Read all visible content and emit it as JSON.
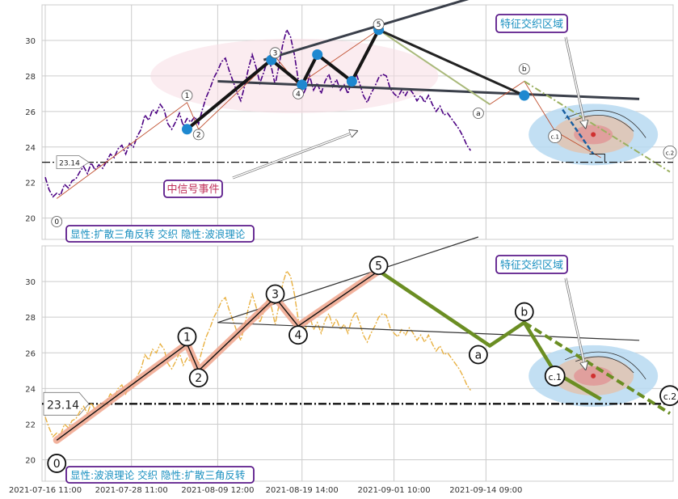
{
  "chart_data": [
    {
      "type": "line",
      "panel": "top",
      "ylim": [
        18.8,
        32
      ],
      "yticks": [
        20,
        22,
        24,
        26,
        28,
        30
      ],
      "xticks": [
        "2021-07-16 11:00",
        "2021-07-28 11:00",
        "2021-08-09 12:00",
        "2021-08-19 14:00",
        "2021-09-01 10:00",
        "2021-09-14 09:00"
      ],
      "reference_level": {
        "value": 23.14,
        "label": "23.14"
      },
      "caption": "显性:扩散三角反转 交织 隐性:波浪理论",
      "annotations": [
        {
          "text": "特征交织区域"
        },
        {
          "text": "中信号事件"
        }
      ],
      "series": [
        {
          "role": "price",
          "color": "#4b0082",
          "values": [
            22.3,
            21.6,
            21.2,
            21.4,
            21.3,
            21.9,
            21.7,
            22.1,
            22.2,
            22.6,
            22.9,
            22.5,
            23.1,
            22.7,
            23.0,
            22.8,
            23.2,
            23.6,
            23.4,
            23.9,
            24.1,
            23.6,
            24.2,
            24.0,
            24.6,
            25.0,
            25.8,
            25.5,
            26.1,
            25.9,
            26.4,
            26.1,
            25.3,
            25.0,
            25.4,
            25.9,
            25.2,
            25.6,
            25.4,
            25.7,
            25.3,
            26.1,
            26.8,
            27.3,
            27.9,
            28.3,
            28.8,
            29.0,
            28.3,
            27.7,
            27.1,
            26.6,
            27.4,
            28.4,
            29.2,
            28.5,
            27.6,
            28.2,
            28.9,
            28.5,
            27.5,
            28.6,
            29.8,
            30.6,
            30.2,
            29.2,
            27.8,
            26.8,
            27.3,
            28.0,
            27.2,
            27.6,
            27.0,
            27.7,
            28.1,
            27.4,
            27.8,
            27.2,
            27.5,
            27.0,
            27.8,
            28.2,
            27.6,
            26.9,
            26.5,
            27.0,
            27.4,
            27.9,
            28.1,
            28.0,
            27.3,
            27.0,
            26.8,
            27.2,
            26.9,
            27.3,
            27.0,
            26.6,
            26.9,
            26.5,
            26.9,
            26.4,
            26.0,
            26.3,
            25.8,
            25.9,
            25.6,
            25.3,
            25.0,
            24.6,
            24.1,
            23.8
          ]
        }
      ],
      "overlays": {
        "pattern_pivots": [
          [
            37,
            25.0
          ],
          [
            59,
            28.9
          ],
          [
            67,
            27.5
          ],
          [
            71,
            29.2
          ],
          [
            80,
            27.7
          ],
          [
            87,
            30.6
          ],
          [
            125,
            26.9
          ]
        ],
        "pattern_line_upper": [
          [
            57,
            28.9
          ],
          [
            113,
            32.5
          ]
        ],
        "pattern_line_lower": [
          [
            45,
            27.7
          ],
          [
            155,
            26.7
          ]
        ],
        "wave_path": [
          [
            3,
            21.1
          ],
          [
            37,
            26.5
          ],
          [
            40,
            25.0
          ],
          [
            60,
            29.1
          ],
          [
            66,
            27.5
          ],
          [
            87,
            30.6
          ],
          [
            116,
            26.4
          ],
          [
            125,
            27.7
          ],
          [
            133,
            24.9
          ],
          [
            145,
            23.4
          ]
        ],
        "wave_forecast": [
          [
            125,
            27.7
          ],
          [
            163,
            22.6
          ]
        ],
        "wave_labels": [
          {
            "text": "0",
            "x": 3,
            "y": 19.8
          },
          {
            "text": "1",
            "x": 37,
            "y": 26.9
          },
          {
            "text": "2",
            "x": 40,
            "y": 24.7
          },
          {
            "text": "3",
            "x": 60,
            "y": 29.3
          },
          {
            "text": "4",
            "x": 66,
            "y": 27.0
          },
          {
            "text": "5",
            "x": 87,
            "y": 30.9
          },
          {
            "text": "a",
            "x": 113,
            "y": 25.9
          },
          {
            "text": "b",
            "x": 125,
            "y": 28.4
          },
          {
            "text": "c.1",
            "x": 133,
            "y": 24.6
          },
          {
            "text": "c.2",
            "x": 163,
            "y": 23.7
          }
        ],
        "hot_zone": {
          "x": 143,
          "y": 24.7
        },
        "guide_line": [
          [
            135,
            26.1
          ],
          [
            143,
            23.6
          ]
        ]
      }
    },
    {
      "type": "line",
      "panel": "bottom",
      "ylim": [
        18.8,
        32
      ],
      "yticks": [
        20,
        22,
        24,
        26,
        28,
        30
      ],
      "xticks": [
        "2021-07-16 11:00",
        "2021-07-28 11:00",
        "2021-08-09 12:00",
        "2021-08-19 14:00",
        "2021-09-01 10:00",
        "2021-09-14 09:00"
      ],
      "reference_level": {
        "value": 23.14,
        "label": "23.14"
      },
      "caption": "显性:波浪理论 交织 隐性:扩散三角反转",
      "annotations": [
        {
          "text": "特征交织区域"
        }
      ],
      "series": [
        {
          "role": "price",
          "color": "#e8b040",
          "values": [
            22.4,
            21.8,
            21.3,
            21.5,
            21.4,
            22.0,
            21.8,
            22.2,
            22.3,
            22.7,
            23.0,
            22.6,
            23.2,
            22.8,
            23.1,
            22.9,
            23.3,
            23.7,
            23.5,
            24.0,
            24.2,
            23.7,
            24.3,
            24.1,
            24.7,
            25.1,
            25.9,
            25.6,
            26.2,
            26.0,
            26.5,
            26.2,
            25.4,
            25.1,
            25.5,
            26.0,
            25.3,
            25.7,
            25.5,
            25.8,
            25.4,
            26.2,
            26.9,
            27.4,
            28.0,
            28.4,
            28.9,
            29.1,
            28.4,
            27.8,
            27.2,
            26.7,
            27.5,
            28.5,
            29.3,
            28.6,
            27.7,
            28.3,
            29.0,
            28.6,
            27.6,
            28.7,
            29.9,
            30.6,
            30.3,
            29.3,
            27.9,
            26.9,
            27.4,
            28.1,
            27.3,
            27.7,
            27.1,
            27.8,
            28.2,
            27.5,
            27.9,
            27.3,
            27.6,
            27.1,
            27.9,
            28.3,
            27.7,
            27.0,
            26.6,
            27.1,
            27.5,
            28.0,
            28.2,
            28.1,
            27.4,
            27.1,
            26.9,
            27.3,
            27.0,
            27.4,
            27.1,
            26.7,
            27.0,
            26.6,
            27.0,
            26.5,
            26.1,
            26.4,
            25.9,
            26.0,
            25.7,
            25.4,
            25.1,
            24.7,
            24.2,
            23.9
          ]
        }
      ],
      "overlays": {
        "pattern_line_upper": [
          [
            45,
            27.7
          ],
          [
            113,
            32.5
          ]
        ],
        "pattern_line_lower": [
          [
            45,
            27.7
          ],
          [
            155,
            26.7
          ]
        ],
        "wave_impulse": [
          [
            3,
            21.1
          ],
          [
            37,
            26.5
          ],
          [
            40,
            25.0
          ],
          [
            60,
            29.1
          ],
          [
            66,
            27.5
          ],
          [
            87,
            30.6
          ]
        ],
        "wave_correction": [
          [
            87,
            30.6
          ],
          [
            116,
            26.4
          ],
          [
            125,
            27.7
          ],
          [
            133,
            24.9
          ],
          [
            145,
            23.4
          ]
        ],
        "wave_forecast": [
          [
            125,
            27.7
          ],
          [
            163,
            22.6
          ]
        ],
        "wave_labels": [
          {
            "text": "0",
            "x": 3,
            "y": 19.8
          },
          {
            "text": "1",
            "x": 37,
            "y": 26.9
          },
          {
            "text": "2",
            "x": 40,
            "y": 24.6
          },
          {
            "text": "3",
            "x": 60,
            "y": 29.3
          },
          {
            "text": "4",
            "x": 66,
            "y": 27.0
          },
          {
            "text": "5",
            "x": 87,
            "y": 30.9
          },
          {
            "text": "a",
            "x": 113,
            "y": 25.9
          },
          {
            "text": "b",
            "x": 125,
            "y": 28.3
          },
          {
            "text": "c.1",
            "x": 133,
            "y": 24.7
          },
          {
            "text": "c.2",
            "x": 163,
            "y": 23.6
          }
        ],
        "hot_zone": {
          "x": 143,
          "y": 24.7
        },
        "guide_line": [
          [
            135,
            26.1
          ],
          [
            143,
            23.6
          ]
        ]
      }
    }
  ]
}
